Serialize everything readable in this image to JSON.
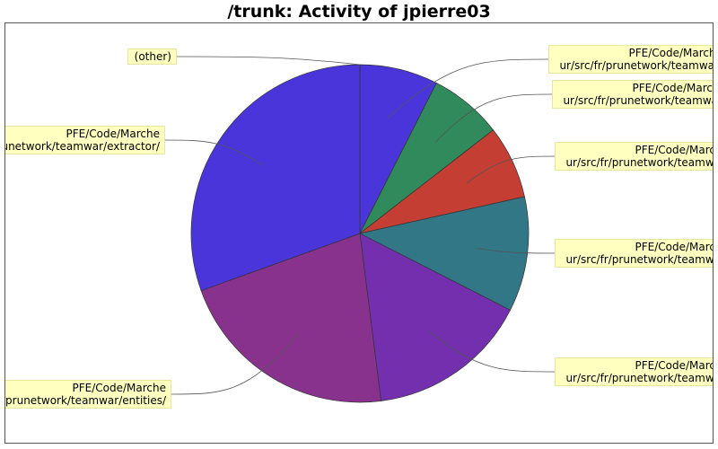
{
  "chart_data": {
    "type": "pie",
    "title": "/trunk: Activity of jpierre03",
    "slices": [
      {
        "label": [
          "PFE/Code/Marche",
          "ur/src/fr/prunetwork/teamwar/"
        ],
        "value": 7.5,
        "color": "#4a35da"
      },
      {
        "label": [
          "PFE/Code/Marche",
          "ur/src/fr/prunetwork/teamwar/"
        ],
        "value": 7.0,
        "color": "#318a5c"
      },
      {
        "label": [
          "PFE/Code/Marche",
          "ur/src/fr/prunetwork/teamwar/"
        ],
        "value": 7.0,
        "color": "#c43e33"
      },
      {
        "label": [
          "PFE/Code/Marche",
          "ur/src/fr/prunetwork/teamwar/"
        ],
        "value": 11.0,
        "color": "#317785"
      },
      {
        "label": [
          "PFE/Code/Marche",
          "ur/src/fr/prunetwork/teamwar/"
        ],
        "value": 15.5,
        "color": "#742fae"
      },
      {
        "label": [
          "PFE/Code/Marche",
          "prunetwork/teamwar/entities/"
        ],
        "value": 21.5,
        "color": "#88328d"
      },
      {
        "label": [
          "PFE/Code/Marche",
          "prunetwork/teamwar/extractor/"
        ],
        "value": 30.5,
        "color": "#4a35da"
      },
      {
        "label": [
          "(other)"
        ],
        "value": 0.0,
        "color": "#4a35da"
      }
    ]
  }
}
